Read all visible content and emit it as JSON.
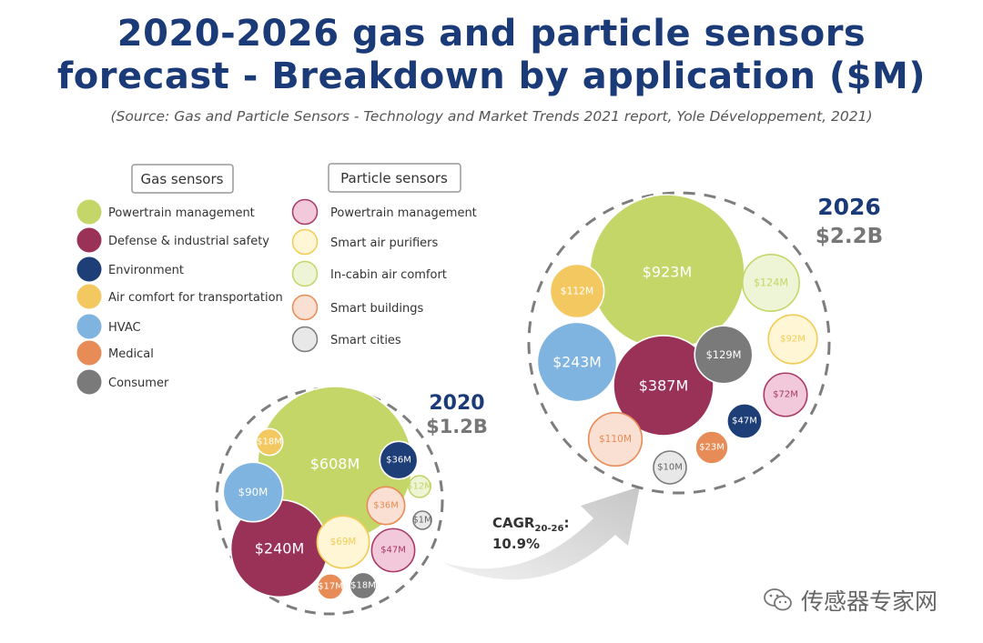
{
  "chart_data": {
    "type": "bubble",
    "title_line1": "2020-2026 gas and particle sensors",
    "title_line2": "forecast - Breakdown by application ($M)",
    "subtitle": "(Source: Gas and Particle Sensors - Technology and Market Trends 2021 report, Yole Développement, 2021)",
    "legend": {
      "gas_title": "Gas sensors",
      "particle_title": "Particle sensors",
      "gas": [
        {
          "key": "gas_powertrain",
          "label": "Powertrain management",
          "color": "#c5d669"
        },
        {
          "key": "gas_defense",
          "label": "Defense & industrial safety",
          "color": "#993256"
        },
        {
          "key": "gas_environment",
          "label": "Environment",
          "color": "#1d3e76"
        },
        {
          "key": "gas_aircomfort",
          "label": "Air comfort for transportation",
          "color": "#f4c860"
        },
        {
          "key": "gas_hvac",
          "label": "HVAC",
          "color": "#7fb3e0"
        },
        {
          "key": "gas_medical",
          "label": "Medical",
          "color": "#e88c57"
        },
        {
          "key": "gas_consumer",
          "label": "Consumer",
          "color": "#7a7a7a"
        }
      ],
      "particle": [
        {
          "key": "pm_powertrain",
          "label": "Powertrain management",
          "color": "#f2c9da",
          "stroke": "#a83a66"
        },
        {
          "key": "pm_purifiers",
          "label": "Smart air purifiers",
          "color": "#fff6d6",
          "stroke": "#f0cc55"
        },
        {
          "key": "pm_incabin",
          "label": "In-cabin air comfort",
          "color": "#eef4d6",
          "stroke": "#c5d669"
        },
        {
          "key": "pm_buildings",
          "label": "Smart buildings",
          "color": "#f9e0d3",
          "stroke": "#e88c57"
        },
        {
          "key": "pm_cities",
          "label": "Smart cities",
          "color": "#e8e8e8",
          "stroke": "#7a7a7a"
        }
      ]
    },
    "years": [
      {
        "year": "2020",
        "total": "$1.2B",
        "bubbles": [
          {
            "key": "gas_powertrain",
            "value": 608,
            "label": "$608M"
          },
          {
            "key": "gas_defense",
            "value": 240,
            "label": "$240M"
          },
          {
            "key": "gas_hvac",
            "value": 90,
            "label": "$90M"
          },
          {
            "key": "gas_aircomfort",
            "value": 18,
            "label": "$18M"
          },
          {
            "key": "gas_environment",
            "value": 36,
            "label": "$36M"
          },
          {
            "key": "pm_incabin",
            "value": 12,
            "label": "$12M"
          },
          {
            "key": "pm_buildings",
            "value": 36,
            "label": "$36M"
          },
          {
            "key": "pm_cities",
            "value": 1,
            "label": "$1M"
          },
          {
            "key": "pm_purifiers",
            "value": 69,
            "label": "$69M"
          },
          {
            "key": "pm_powertrain",
            "value": 47,
            "label": "$47M"
          },
          {
            "key": "gas_medical",
            "value": 17,
            "label": "$17M"
          },
          {
            "key": "gas_consumer",
            "value": 18,
            "label": "$18M"
          }
        ]
      },
      {
        "year": "2026",
        "total": "$2.2B",
        "bubbles": [
          {
            "key": "gas_powertrain",
            "value": 923,
            "label": "$923M"
          },
          {
            "key": "gas_aircomfort",
            "value": 112,
            "label": "$112M"
          },
          {
            "key": "pm_incabin",
            "value": 124,
            "label": "$124M"
          },
          {
            "key": "gas_hvac",
            "value": 243,
            "label": "$243M"
          },
          {
            "key": "gas_defense",
            "value": 387,
            "label": "$387M"
          },
          {
            "key": "gas_consumer",
            "value": 129,
            "label": "$129M"
          },
          {
            "key": "pm_purifiers",
            "value": 92,
            "label": "$92M"
          },
          {
            "key": "pm_powertrain",
            "value": 72,
            "label": "$72M"
          },
          {
            "key": "gas_environment",
            "value": 47,
            "label": "$47M"
          },
          {
            "key": "pm_buildings",
            "value": 110,
            "label": "$110M"
          },
          {
            "key": "gas_medical",
            "value": 23,
            "label": "$23M"
          },
          {
            "key": "pm_cities",
            "value": 10,
            "label": "$10M"
          }
        ]
      }
    ],
    "cagr": {
      "prefix": "CAGR",
      "sub": "20-26",
      "suffix": ":",
      "value": "10.9%"
    }
  },
  "watermark": {
    "text": "传感器专家网",
    "icon": "wechat-icon"
  }
}
